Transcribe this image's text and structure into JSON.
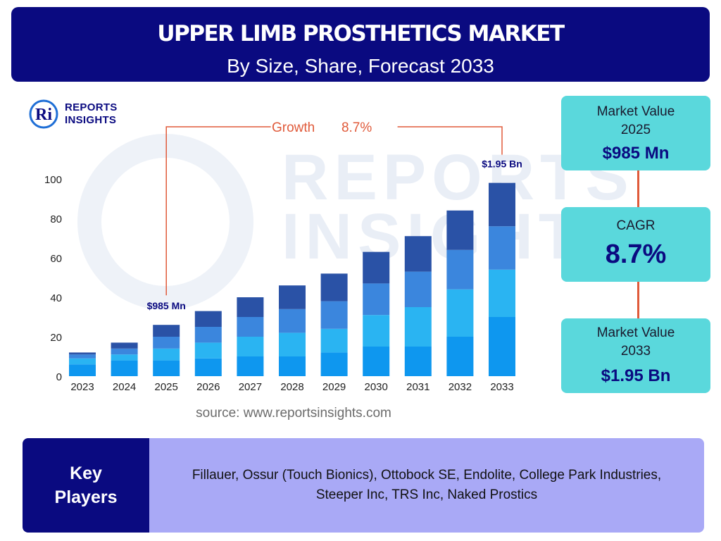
{
  "header": {
    "title": "UPPER LIMB PROSTHETICS MARKET",
    "subtitle": "By Size, Share, Forecast 2033"
  },
  "logo": {
    "line1": "REPORTS",
    "line2": "INSIGHTS",
    "mark": "Ri"
  },
  "chart_data": {
    "type": "bar",
    "stacked": true,
    "categories": [
      "2023",
      "2024",
      "2025",
      "2026",
      "2027",
      "2028",
      "2029",
      "2030",
      "2031",
      "2032",
      "2033"
    ],
    "series": [
      {
        "values": [
          6,
          8,
          8,
          9,
          10,
          10,
          12,
          15,
          15,
          20,
          30
        ],
        "color": "#0e97ef"
      },
      {
        "values": [
          3,
          3,
          6,
          8,
          10,
          12,
          12,
          16,
          20,
          24,
          24
        ],
        "color": "#2ab4f2"
      },
      {
        "values": [
          2,
          3,
          6,
          8,
          10,
          12,
          14,
          16,
          18,
          20,
          22
        ],
        "color": "#3b86dd"
      },
      {
        "values": [
          1,
          3,
          6,
          8,
          10,
          12,
          14,
          16,
          18,
          20,
          22
        ],
        "color": "#2a52a6"
      }
    ],
    "yticks": [
      0,
      20,
      40,
      60,
      80,
      100
    ],
    "ylim": [
      0,
      100
    ],
    "grid": false,
    "annotations": [
      {
        "category": "2025",
        "text": "$985 Mn"
      },
      {
        "category": "2033",
        "text": "$1.95 Bn"
      }
    ],
    "growth_label": "Growth",
    "growth_value": "8.7%",
    "bracket_color": "#e05a3a"
  },
  "source": "source: www.reportsinsights.com",
  "cards": {
    "market_2025": {
      "label_line1": "Market Value",
      "label_line2": "2025",
      "value": "$985 Mn"
    },
    "cagr": {
      "label": "CAGR",
      "value": "8.7%"
    },
    "market_2033": {
      "label_line1": "Market Value",
      "label_line2": "2033",
      "value": "$1.95 Bn"
    }
  },
  "key_players": {
    "heading_line1": "Key",
    "heading_line2": "Players",
    "line1": "Fillauer, Ossur (Touch Bionics), Ottobock SE, Endolite, College Park Industries,",
    "line2": "Steeper Inc, TRS Inc, Naked Prostics"
  },
  "watermark": {
    "line1": "REPORTS",
    "line2": "INSIGHTS"
  }
}
